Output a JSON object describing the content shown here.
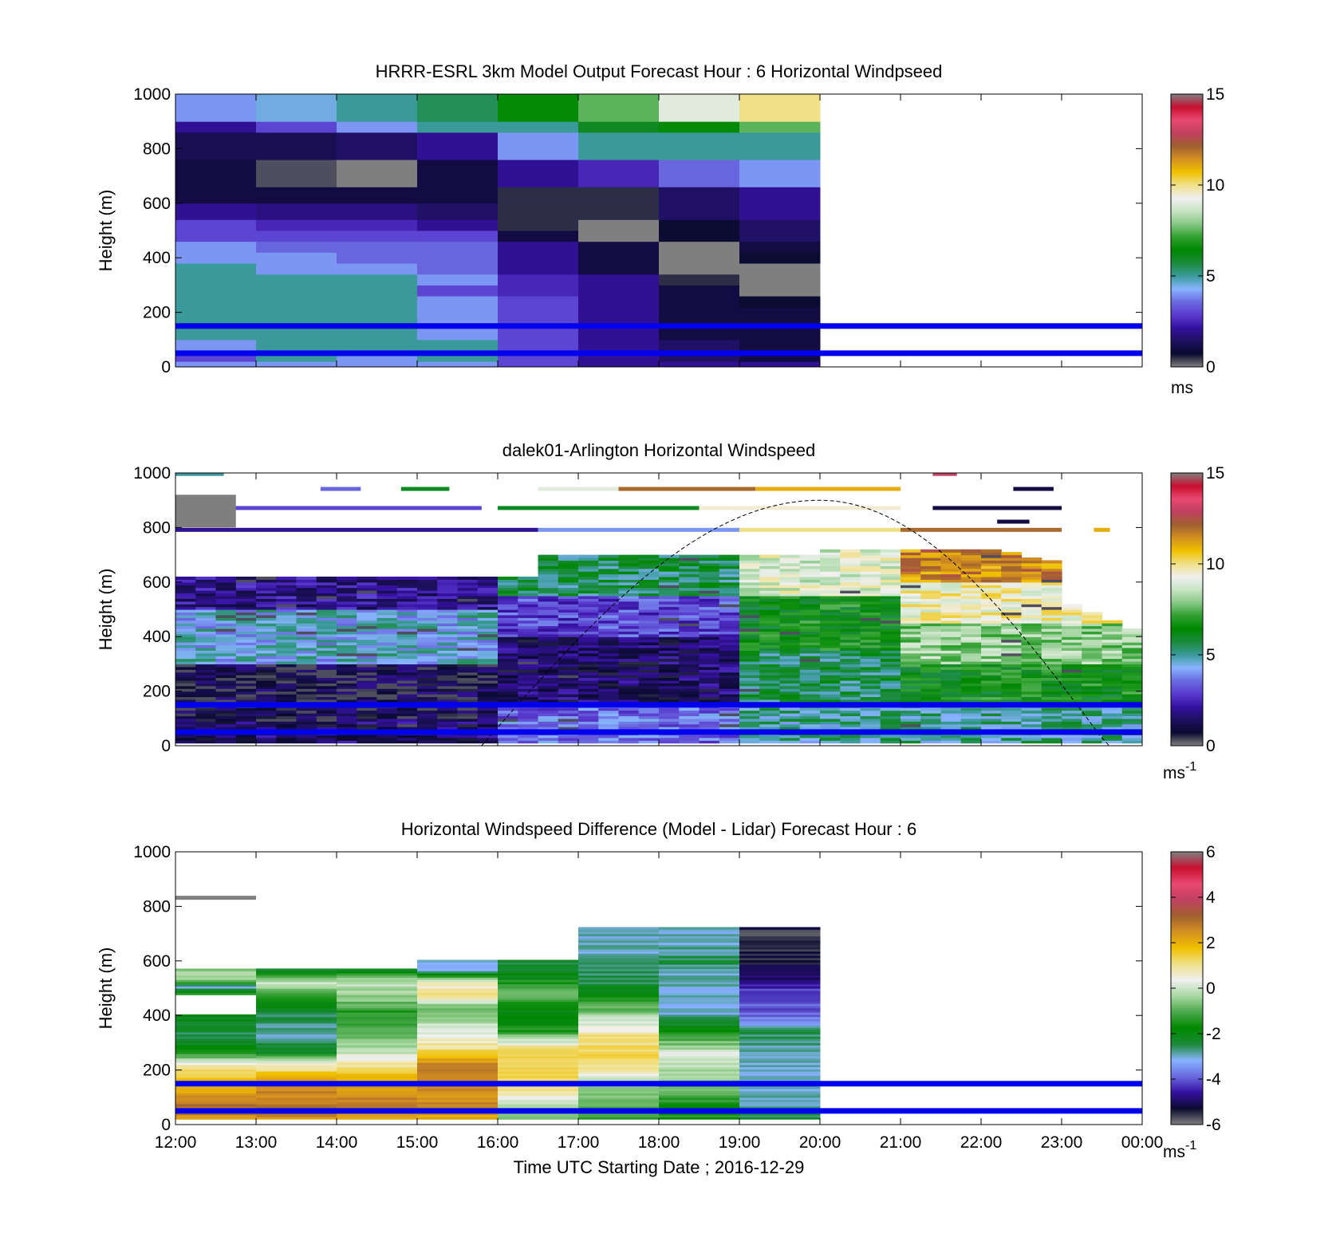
{
  "colors": {
    "windspeed_scale": [
      "#7f7f7f",
      "#0a0a30",
      "#1e1060",
      "#3510a0",
      "#5a3cd0",
      "#6a6ae0",
      "#88b4ff",
      "#3a9a9a",
      "#1a8a3a",
      "#008800",
      "#30a030",
      "#86c886",
      "#c8e4c4",
      "#f0f0f0",
      "#f0e088",
      "#f0c000",
      "#d49020",
      "#a06030",
      "#c04060",
      "#e84870",
      "#c81030",
      "#7f7f7f"
    ],
    "difference_scale": [
      "#7f7f7f",
      "#0a0a30",
      "#3510a0",
      "#6a6ae0",
      "#88b4ff",
      "#1a8a3a",
      "#008800",
      "#4aa84a",
      "#a8d8a0",
      "#f0f0f0",
      "#f0e088",
      "#f0c000",
      "#d49020",
      "#a06030",
      "#c04060",
      "#e84870",
      "#c81030",
      "#7f7f7f"
    ],
    "blue_lines": "#0000ee"
  },
  "chart_data": [
    {
      "type": "heatmap",
      "title": "HRRR-ESRL 3km Model Output   Forecast Hour : 6 Horizontal Windpseed",
      "ylabel": "Height (m)",
      "ylim": [
        0,
        1000
      ],
      "yticks": [
        "0",
        "200",
        "400",
        "600",
        "800",
        "1000"
      ],
      "x_hours": [
        12,
        13,
        14,
        15,
        16,
        17,
        18,
        19,
        20,
        21,
        22,
        23,
        24
      ],
      "colorbar": {
        "ticks": [
          "0",
          "5",
          "10",
          "15"
        ],
        "range": [
          0,
          15
        ],
        "unit": "ms"
      },
      "reference_heights": [
        50,
        150
      ],
      "cells": {
        "x_start": [
          12,
          13,
          14,
          15,
          16,
          17,
          18,
          19
        ],
        "x_width": 1,
        "heights": [
          [
            0,
            20
          ],
          [
            20,
            40
          ],
          [
            40,
            60
          ],
          [
            60,
            80
          ],
          [
            80,
            100
          ],
          [
            100,
            140
          ],
          [
            140,
            180
          ],
          [
            180,
            220
          ],
          [
            220,
            260
          ],
          [
            260,
            300
          ],
          [
            300,
            340
          ],
          [
            340,
            380
          ],
          [
            380,
            420
          ],
          [
            420,
            460
          ],
          [
            460,
            500
          ],
          [
            500,
            540
          ],
          [
            540,
            600
          ],
          [
            600,
            660
          ],
          [
            660,
            760
          ],
          [
            760,
            860
          ],
          [
            860,
            900
          ],
          [
            900,
            1000
          ]
        ],
        "values": [
          [
            4,
            4,
            4,
            4,
            3,
            2,
            2,
            2
          ],
          [
            3,
            5,
            4,
            5,
            3,
            2,
            1.5,
            1
          ],
          [
            3,
            5,
            5,
            5,
            3,
            2,
            1.5,
            1
          ],
          [
            4,
            5,
            5,
            5,
            3,
            2,
            1.5,
            1
          ],
          [
            4,
            5,
            5,
            5,
            3,
            2,
            1.5,
            1
          ],
          [
            5,
            5,
            5,
            4,
            3,
            2,
            1,
            1
          ],
          [
            5,
            5,
            5,
            4,
            3,
            2,
            1,
            1
          ],
          [
            5,
            5,
            5,
            4,
            3,
            2,
            1,
            1
          ],
          [
            5,
            5,
            5,
            4,
            3,
            2,
            1,
            0.7
          ],
          [
            5,
            5,
            5,
            3,
            2.5,
            2,
            1,
            0
          ],
          [
            5,
            5,
            5,
            4,
            2.5,
            2,
            0.5,
            0
          ],
          [
            5,
            4,
            4,
            3.5,
            2,
            1,
            0,
            0
          ],
          [
            4,
            4,
            3.5,
            3.5,
            2,
            1,
            0,
            0.7
          ],
          [
            4,
            3.5,
            3.5,
            3.5,
            2,
            1,
            0,
            1
          ],
          [
            3,
            3,
            3,
            3,
            1,
            0,
            0.7,
            1.5
          ],
          [
            3,
            2.5,
            2.5,
            2,
            0.5,
            0,
            0.7,
            1.5
          ],
          [
            2,
            1.8,
            1.8,
            1.5,
            0.5,
            0.5,
            1.5,
            2
          ],
          [
            1,
            1,
            1,
            1,
            0.5,
            0.5,
            1.5,
            2
          ],
          [
            1,
            0.3,
            0,
            1,
            2,
            2.5,
            3.5,
            4
          ],
          [
            1.2,
            1.2,
            1.5,
            2,
            4,
            5,
            5,
            5
          ],
          [
            2,
            3,
            4,
            5,
            5,
            6,
            6.5,
            7.5
          ],
          [
            4,
            4.5,
            5,
            5.5,
            6.5,
            7.5,
            9,
            10
          ]
        ]
      }
    },
    {
      "type": "heatmap",
      "title": "dalek01-Arlington  Horizontal Windspeed",
      "ylabel": "Height (m)",
      "ylim": [
        0,
        1000
      ],
      "yticks": [
        "0",
        "200",
        "400",
        "600",
        "800",
        "1000"
      ],
      "x_hours": [
        12,
        13,
        14,
        15,
        16,
        17,
        18,
        19,
        20,
        21,
        22,
        23,
        24
      ],
      "colorbar": {
        "ticks": [
          "0",
          "5",
          "10",
          "15"
        ],
        "range": [
          0,
          15
        ],
        "unit": "ms-1"
      },
      "reference_heights": [
        50,
        150
      ],
      "daylight_curve": {
        "x_start": 15.8,
        "x_peak": 20,
        "x_end": 24,
        "peak_height": 900
      }
    },
    {
      "type": "heatmap",
      "title": "Horizontal Windspeed Difference (Model - Lidar) Forecast Hour : 6",
      "ylabel": "Height (m)",
      "xlabel": "Time UTC  Starting Date ; 2016-12-29",
      "ylim": [
        0,
        1000
      ],
      "yticks": [
        "0",
        "200",
        "400",
        "600",
        "800",
        "1000"
      ],
      "xticks": [
        "12:00",
        "13:00",
        "14:00",
        "15:00",
        "16:00",
        "17:00",
        "18:00",
        "19:00",
        "20:00",
        "21:00",
        "22:00",
        "23:00",
        "00:00"
      ],
      "colorbar": {
        "ticks": [
          "-6",
          "-4",
          "-2",
          "0",
          "2",
          "4",
          "6"
        ],
        "range": [
          -6,
          6
        ],
        "unit": "ms-1"
      },
      "reference_heights": [
        50,
        150
      ],
      "columns": [
        {
          "x": 12,
          "top": 570,
          "profile": [
            [
              0,
              2
            ],
            [
              60,
              3
            ],
            [
              120,
              2
            ],
            [
              180,
              1.5
            ],
            [
              220,
              0.5
            ],
            [
              260,
              -1.5
            ],
            [
              330,
              -2.5
            ],
            [
              400,
              -2
            ],
            [
              430,
              null
            ],
            [
              470,
              -1
            ],
            [
              500,
              -3
            ],
            [
              530,
              -0.5
            ],
            [
              570,
              -0.5
            ]
          ]
        },
        {
          "x": 13,
          "top": 570,
          "profile": [
            [
              0,
              2
            ],
            [
              60,
              3
            ],
            [
              120,
              2.5
            ],
            [
              170,
              2
            ],
            [
              220,
              0.5
            ],
            [
              260,
              -2
            ],
            [
              330,
              -3
            ],
            [
              400,
              -2.5
            ],
            [
              470,
              -1.5
            ],
            [
              520,
              0
            ],
            [
              570,
              -2.5
            ]
          ]
        },
        {
          "x": 14,
          "top": 570,
          "profile": [
            [
              0,
              2
            ],
            [
              60,
              3
            ],
            [
              120,
              2.5
            ],
            [
              190,
              1.5
            ],
            [
              260,
              0
            ],
            [
              330,
              -1
            ],
            [
              400,
              -1.5
            ],
            [
              470,
              -0.5
            ],
            [
              520,
              0
            ],
            [
              570,
              -2.5
            ]
          ]
        },
        {
          "x": 15,
          "top": 600,
          "profile": [
            [
              0,
              2
            ],
            [
              60,
              2.5
            ],
            [
              120,
              2.5
            ],
            [
              200,
              3
            ],
            [
              280,
              1
            ],
            [
              360,
              0
            ],
            [
              420,
              -1
            ],
            [
              470,
              1
            ],
            [
              520,
              0.5
            ],
            [
              560,
              -3
            ],
            [
              600,
              -3
            ]
          ]
        },
        {
          "x": 16,
          "top": 600,
          "profile": [
            [
              0,
              -1
            ],
            [
              60,
              -0.5
            ],
            [
              120,
              1
            ],
            [
              200,
              1.5
            ],
            [
              280,
              1
            ],
            [
              340,
              -1.5
            ],
            [
              420,
              -2
            ],
            [
              480,
              -0.5
            ],
            [
              540,
              -2
            ],
            [
              600,
              -2.5
            ]
          ]
        },
        {
          "x": 17,
          "top": 720,
          "profile": [
            [
              0,
              -1.5
            ],
            [
              80,
              -1
            ],
            [
              160,
              0
            ],
            [
              240,
              1.5
            ],
            [
              320,
              1
            ],
            [
              380,
              0
            ],
            [
              430,
              -1
            ],
            [
              520,
              -2.5
            ],
            [
              640,
              -3
            ],
            [
              720,
              -3
            ]
          ]
        },
        {
          "x": 18,
          "top": 720,
          "profile": [
            [
              0,
              -1.5
            ],
            [
              80,
              -1.5
            ],
            [
              160,
              -0.5
            ],
            [
              260,
              0
            ],
            [
              310,
              -1
            ],
            [
              400,
              -3
            ],
            [
              520,
              -3
            ],
            [
              600,
              -2.5
            ],
            [
              660,
              -3
            ],
            [
              720,
              -3
            ]
          ]
        },
        {
          "x": 19,
          "top": 720,
          "profile": [
            [
              0,
              -2.5
            ],
            [
              120,
              -3
            ],
            [
              240,
              -3
            ],
            [
              340,
              -2.5
            ],
            [
              400,
              -4
            ],
            [
              470,
              -4
            ],
            [
              540,
              -5
            ],
            [
              620,
              -5.5
            ],
            [
              720,
              -5.5
            ]
          ]
        }
      ],
      "stray_lines": [
        [
          12,
          13,
          830
        ]
      ]
    }
  ]
}
